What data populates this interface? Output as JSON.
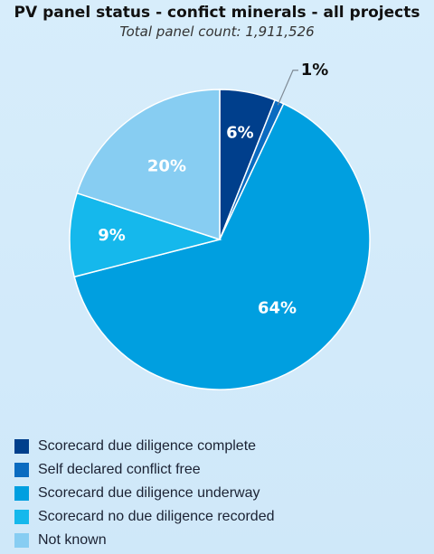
{
  "chart_data": {
    "type": "pie",
    "title": "PV panel status - confict minerals - all projects",
    "subtitle": "Total panel count: 1,911,526",
    "slices": [
      {
        "label": "Scorecard due diligence complete",
        "value": 6,
        "display": "6%",
        "color": "#003f8c"
      },
      {
        "label": "Self declared conflict free",
        "value": 1,
        "display": "1%",
        "color": "#0a6bc0"
      },
      {
        "label": "Scorecard due diligence underway",
        "value": 64,
        "display": "64%",
        "color": "#009fe0"
      },
      {
        "label": "Scorecard no due diligence recorded",
        "value": 9,
        "display": "9%",
        "color": "#15b8ec"
      },
      {
        "label": "Not known",
        "value": 20,
        "display": "20%",
        "color": "#87cdf2"
      }
    ],
    "legend_position": "bottom-left"
  }
}
